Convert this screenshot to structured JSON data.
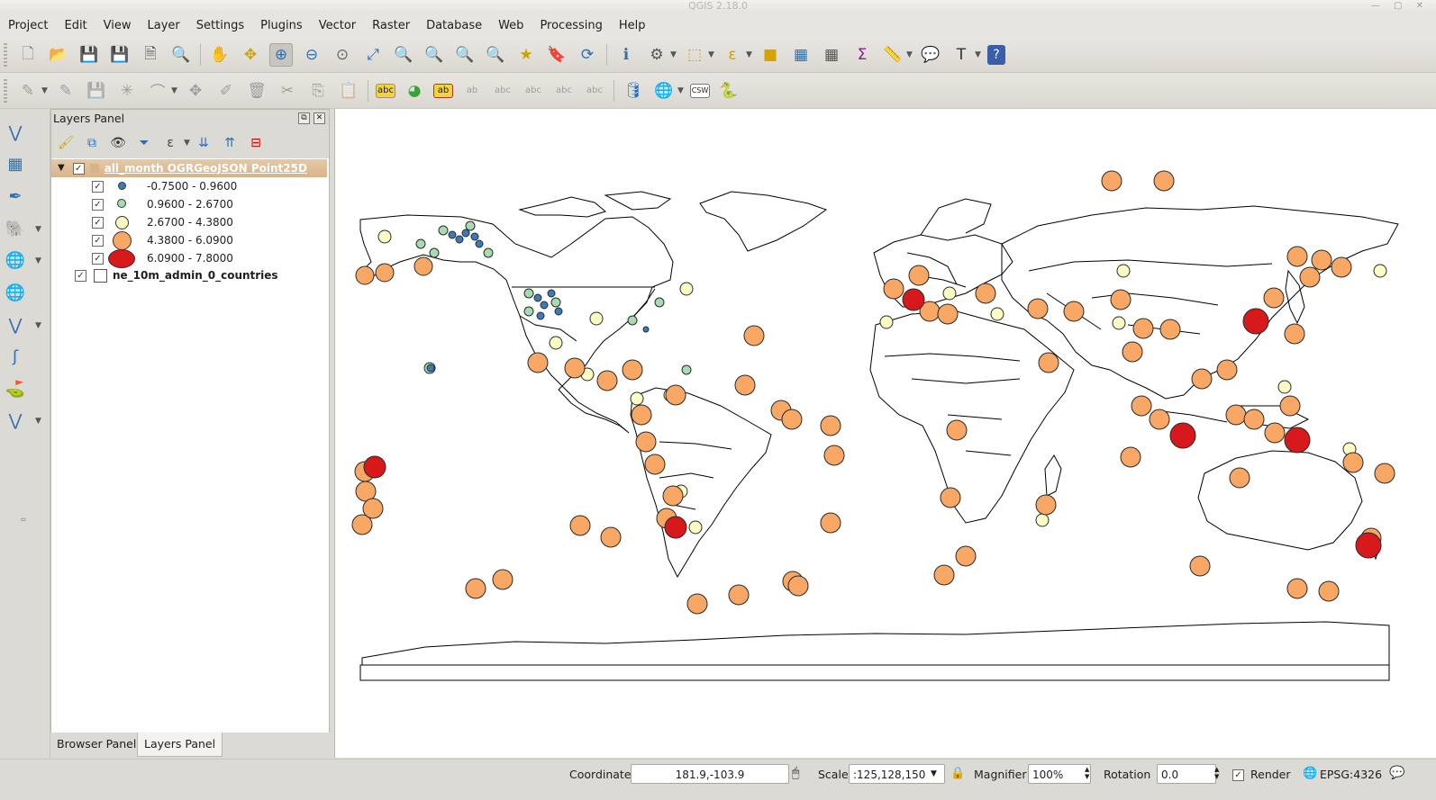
{
  "window": {
    "title": "QGIS 2.18.0"
  },
  "menubar": [
    "Project",
    "Edit",
    "View",
    "Layer",
    "Settings",
    "Plugins",
    "Vector",
    "Raster",
    "Database",
    "Web",
    "Processing",
    "Help"
  ],
  "layers_panel": {
    "title": "Layers Panel",
    "layers": [
      {
        "name": "all_month OGRGeoJSON Point25D",
        "checked": true,
        "expanded": true,
        "selected": true,
        "classes": [
          {
            "label": "-0.7500 - 0.9600",
            "color": "#3a7cb8",
            "checked": true
          },
          {
            "label": "0.9600 - 2.6700",
            "color": "#a8dcb0",
            "checked": true
          },
          {
            "label": "2.6700 - 4.3800",
            "color": "#fbfbc4",
            "checked": true
          },
          {
            "label": "4.3800 - 6.0900",
            "color": "#f8a765",
            "checked": true
          },
          {
            "label": "6.0900 - 7.8000",
            "color": "#d7191c",
            "checked": true
          }
        ]
      },
      {
        "name": "ne_10m_admin_0_countries",
        "checked": true,
        "fill": "#ffffff"
      }
    ]
  },
  "bottom_tabs": [
    {
      "label": "Browser Panel",
      "active": false
    },
    {
      "label": "Layers Panel",
      "active": true
    }
  ],
  "statusbar": {
    "coordinate_label": "Coordinate",
    "coordinate_value": "181.9,-103.9",
    "scale_label": "Scale",
    "scale_value": ":125,128,150",
    "magnifier_label": "Magnifier",
    "magnifier_value": "100%",
    "rotation_label": "Rotation",
    "rotation_value": "0.0",
    "render_label": "Render",
    "render_checked": true,
    "crs": "EPSG:4326"
  },
  "colors": {
    "mag_class_1": "#3a7cb8",
    "mag_class_2": "#a8dcb0",
    "mag_class_3": "#fbfbc4",
    "mag_class_4": "#f8a765",
    "mag_class_5": "#d7191c",
    "selected_layer_bg": "#dcb58c"
  }
}
